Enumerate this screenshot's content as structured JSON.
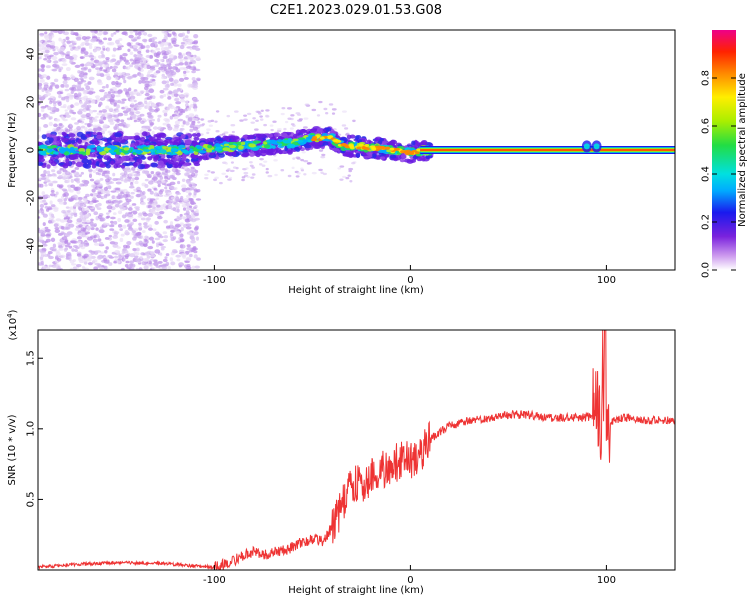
{
  "title": "C2E1.2023.029.01.53.G08",
  "chart_data": [
    {
      "type": "heatmap",
      "xlabel": "Height of straight line (km)",
      "ylabel": "Frequency (Hz)",
      "xlim": [
        -190,
        135
      ],
      "ylim": [
        -50,
        50
      ],
      "xticks": [
        -100,
        0,
        100
      ],
      "yticks": [
        -40,
        -20,
        0,
        20,
        40
      ],
      "colorbar": {
        "label": "Normalized spectral amplitude",
        "range": [
          0,
          1
        ],
        "ticks": [
          "0.0",
          "0.2",
          "0.4",
          "0.6",
          "0.8"
        ],
        "colors": [
          "#ffffff",
          "#cc99ee",
          "#7a22dd",
          "#1a1aee",
          "#00aaff",
          "#00e0e0",
          "#22dd44",
          "#aaee00",
          "#ffee00",
          "#ff8800",
          "#ff2200",
          "#ee0088"
        ]
      },
      "ridge": {
        "x": [
          -190,
          -160,
          -130,
          -110,
          -100,
          -80,
          -60,
          -50,
          -40,
          -35,
          -20,
          -10,
          0,
          10,
          50,
          90,
          95,
          100,
          135
        ],
        "y": [
          0,
          0,
          0,
          0,
          1,
          2,
          3,
          5,
          5,
          2,
          1,
          0,
          -1,
          0,
          0,
          0,
          1,
          0,
          0
        ]
      }
    },
    {
      "type": "line",
      "xlabel": "Height of straight line (km)",
      "ylabel": "SNR (10 * v/v)",
      "y_multiplier_label": "(x10",
      "y_multiplier_exp": "4",
      "xlim": [
        -190,
        135
      ],
      "ylim": [
        0,
        1.7
      ],
      "xticks": [
        -100,
        0,
        100
      ],
      "yticks": [
        "0.5",
        "1.0",
        "1.5"
      ],
      "series": [
        {
          "color": "#ee3333",
          "x": [
            -190,
            -170,
            -150,
            -130,
            -110,
            -100,
            -95,
            -90,
            -85,
            -80,
            -75,
            -70,
            -65,
            -60,
            -55,
            -50,
            -45,
            -40,
            -35,
            -30,
            -25,
            -20,
            -15,
            -10,
            -5,
            0,
            5,
            10,
            15,
            20,
            30,
            40,
            50,
            60,
            70,
            80,
            90,
            95,
            100,
            110,
            120,
            135
          ],
          "y": [
            0.02,
            0.04,
            0.05,
            0.05,
            0.03,
            0.02,
            0.04,
            0.07,
            0.1,
            0.13,
            0.11,
            0.12,
            0.14,
            0.16,
            0.2,
            0.22,
            0.2,
            0.3,
            0.45,
            0.62,
            0.6,
            0.65,
            0.7,
            0.74,
            0.78,
            0.78,
            0.82,
            0.92,
            0.98,
            1.02,
            1.06,
            1.08,
            1.1,
            1.1,
            1.08,
            1.08,
            1.08,
            1.1,
            1.05,
            1.08,
            1.06,
            1.06
          ]
        }
      ]
    }
  ]
}
